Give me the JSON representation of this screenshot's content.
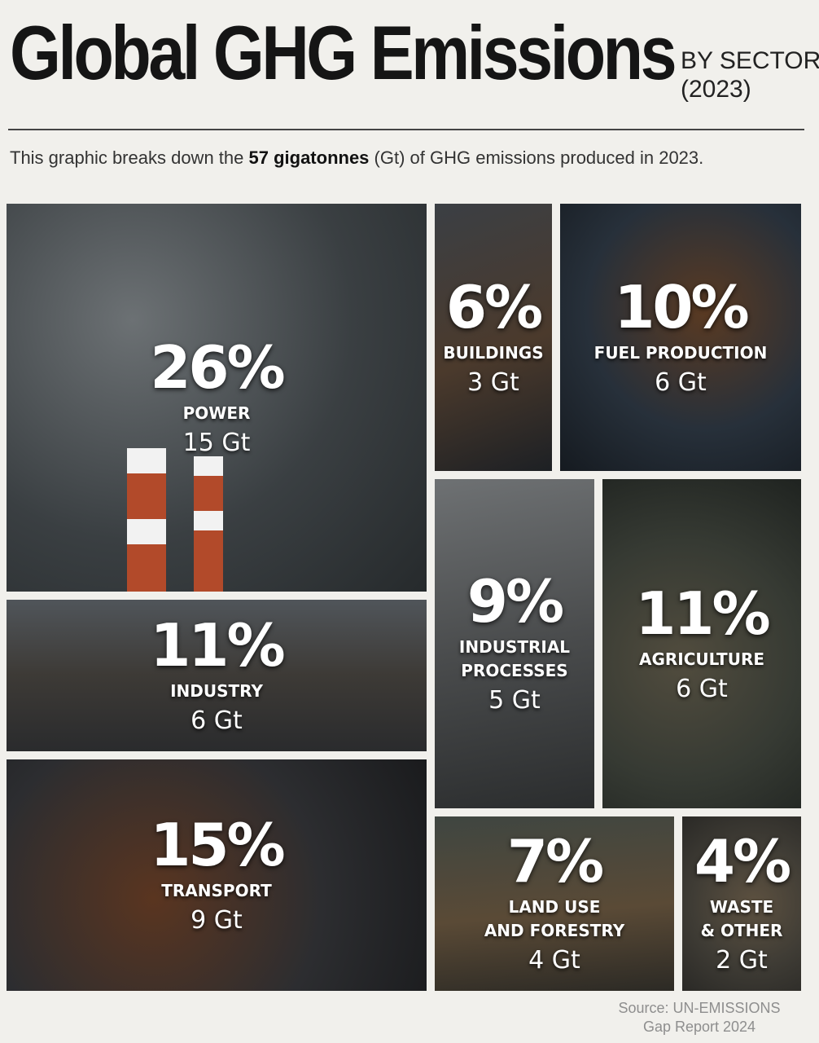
{
  "header": {
    "title": "Global GHG Emissions",
    "subtitle_line1": "BY SECTOR",
    "subtitle_line2": "(2023)",
    "intro_prefix": "This graphic breaks down the ",
    "intro_bold": "57 gigatonnes",
    "intro_suffix": " (Gt) of GHG emissions  produced in 2023."
  },
  "chart_data": {
    "type": "treemap",
    "total_gt": 57,
    "sectors": [
      {
        "name": "POWER",
        "percent": 26,
        "percent_label": "26%",
        "gt": 15,
        "gt_label": "15 Gt"
      },
      {
        "name": "BUILDINGS",
        "percent": 6,
        "percent_label": "6%",
        "gt": 3,
        "gt_label": "3 Gt"
      },
      {
        "name": "FUEL PRODUCTION",
        "percent": 10,
        "percent_label": "10%",
        "gt": 6,
        "gt_label": "6 Gt"
      },
      {
        "name": "INDUSTRY",
        "percent": 11,
        "percent_label": "11%",
        "gt": 6,
        "gt_label": "6 Gt"
      },
      {
        "name": "INDUSTRIAL\nPROCESSES",
        "percent": 9,
        "percent_label": "9%",
        "gt": 5,
        "gt_label": "5 Gt"
      },
      {
        "name": "AGRICULTURE",
        "percent": 11,
        "percent_label": "11%",
        "gt": 6,
        "gt_label": "6 Gt"
      },
      {
        "name": "TRANSPORT",
        "percent": 15,
        "percent_label": "15%",
        "gt": 9,
        "gt_label": "9 Gt"
      },
      {
        "name": "LAND USE\nAND FORESTRY",
        "percent": 7,
        "percent_label": "7%",
        "gt": 4,
        "gt_label": "4 Gt"
      },
      {
        "name": "WASTE\n& OTHER",
        "percent": 4,
        "percent_label": "4%",
        "gt": 2,
        "gt_label": "2 Gt"
      }
    ]
  },
  "source": {
    "line1": "Source: UN-EMISSIONS",
    "line2": "Gap Report 2024"
  }
}
